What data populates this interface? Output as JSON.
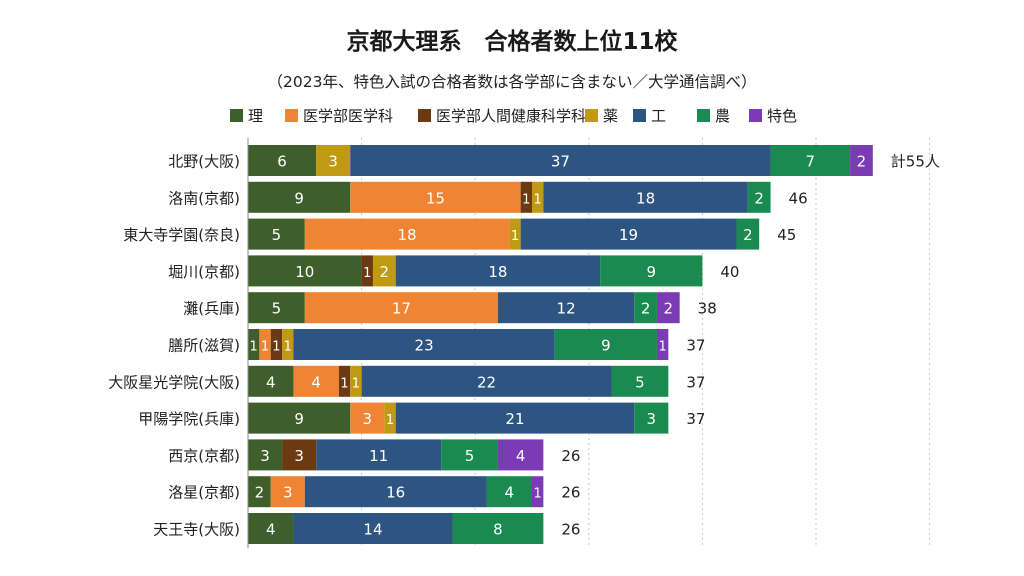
{
  "header": {
    "title": "京都大理系　合格者数上位11校",
    "subtitle": "（2023年、特色入試の合格者数は各学部に含まない／大学通信調べ）"
  },
  "chart_data": {
    "type": "bar",
    "orientation": "horizontal",
    "stacked": true,
    "title": "京都大理系　合格者数上位11校",
    "subtitle": "（2023年、特色入試の合格者数は各学部に含まない／大学通信調べ）",
    "legend_position": "top",
    "grid": true,
    "xlim": [
      0,
      60
    ],
    "categories": [
      "北野(大阪)",
      "洛南(京都)",
      "東大寺学園(奈良)",
      "堀川(京都)",
      "灘(兵庫)",
      "膳所(滋賀)",
      "大阪星光学院(大阪)",
      "甲陽学院(兵庫)",
      "西京(京都)",
      "洛星(京都)",
      "天王寺(大阪)"
    ],
    "series": [
      {
        "name": "理",
        "color": "#3e5f2c",
        "values": [
          6,
          9,
          5,
          10,
          5,
          1,
          4,
          9,
          3,
          2,
          4
        ]
      },
      {
        "name": "医学部医学科",
        "color": "#ee8434",
        "values": [
          0,
          15,
          18,
          0,
          17,
          1,
          4,
          3,
          0,
          3,
          0
        ]
      },
      {
        "name": "医学部人間健康科学科",
        "color": "#6b3a12",
        "values": [
          0,
          1,
          0,
          1,
          0,
          1,
          1,
          0,
          3,
          0,
          0
        ]
      },
      {
        "name": "薬",
        "color": "#c19a14",
        "values": [
          3,
          1,
          1,
          2,
          0,
          1,
          1,
          1,
          0,
          0,
          0
        ]
      },
      {
        "name": "工",
        "color": "#2e5582",
        "values": [
          37,
          18,
          19,
          18,
          12,
          23,
          22,
          21,
          11,
          16,
          14
        ]
      },
      {
        "name": "農",
        "color": "#1a8a50",
        "values": [
          7,
          2,
          2,
          9,
          2,
          9,
          5,
          3,
          5,
          4,
          8
        ]
      },
      {
        "name": "特色",
        "color": "#7b3bb4",
        "values": [
          2,
          0,
          0,
          0,
          2,
          1,
          0,
          0,
          4,
          1,
          0
        ]
      }
    ],
    "totals": [
      55,
      46,
      45,
      40,
      38,
      37,
      37,
      37,
      26,
      26,
      26
    ],
    "total_labels": [
      "計55人",
      "46",
      "45",
      "40",
      "38",
      "37",
      "37",
      "37",
      "26",
      "26",
      "26"
    ]
  }
}
